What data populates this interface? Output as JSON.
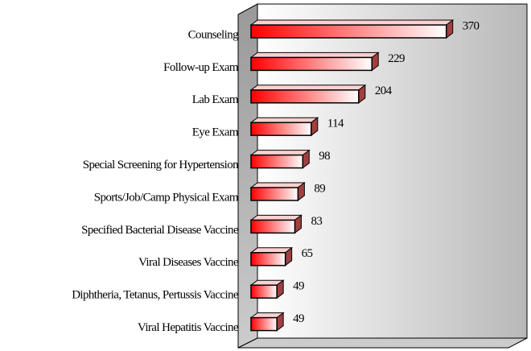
{
  "chart_data": {
    "type": "bar3d_horizontal",
    "categories": [
      "Counseling",
      "Follow-up Exam",
      "Lab Exam",
      "Eye Exam",
      "Special Screening for Hypertension",
      "Sports/Job/Camp Physical Exam",
      "Specified Bacterial Disease Vaccine",
      "Viral Diseases Vaccine",
      "Diphtheria, Tetanus, Pertussis Vaccine",
      "Viral Hepatitis Vaccine"
    ],
    "values": [
      370,
      229,
      204,
      114,
      98,
      89,
      83,
      65,
      49,
      49
    ],
    "color": "#ff0000",
    "xlim": [
      0,
      500
    ]
  }
}
